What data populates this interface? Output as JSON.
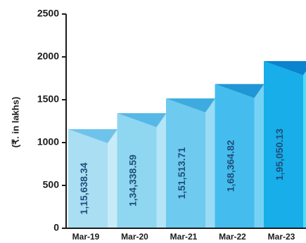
{
  "chart_data": {
    "type": "bar",
    "categories": [
      "Mar-19",
      "Mar-20",
      "Mar-21",
      "Mar-22",
      "Mar-23"
    ],
    "values": [
      1156.3834,
      1343.3859,
      1515.1371,
      1683.6482,
      1950.5013
    ],
    "data_labels": [
      "1,15,638.34",
      "1,34,338.59",
      "1,51,513.71",
      "1,68,364.82",
      "1,95,050.13"
    ],
    "ylabel": "(₹. in lakhs)",
    "yticks": [
      0,
      500,
      1000,
      1500,
      2000,
      2500
    ],
    "ytick_labels": [
      "0",
      "500",
      "1000",
      "1500",
      "2000",
      "2500"
    ],
    "ylim": [
      0,
      2500
    ],
    "grid": false,
    "legend": "none",
    "bar_colors": {
      "face": [
        "#a9def3",
        "#8fd6f0",
        "#6ecaee",
        "#44bdee",
        "#17aeea"
      ],
      "side": [
        "#c8ebf8",
        "#b3e5f7",
        "#9adcf5",
        "#76d2f5",
        "#4ddcf6"
      ],
      "top": [
        "#6ec3ec",
        "#56b8e6",
        "#3eabe0",
        "#2096d6",
        "#0a84cf"
      ]
    }
  }
}
